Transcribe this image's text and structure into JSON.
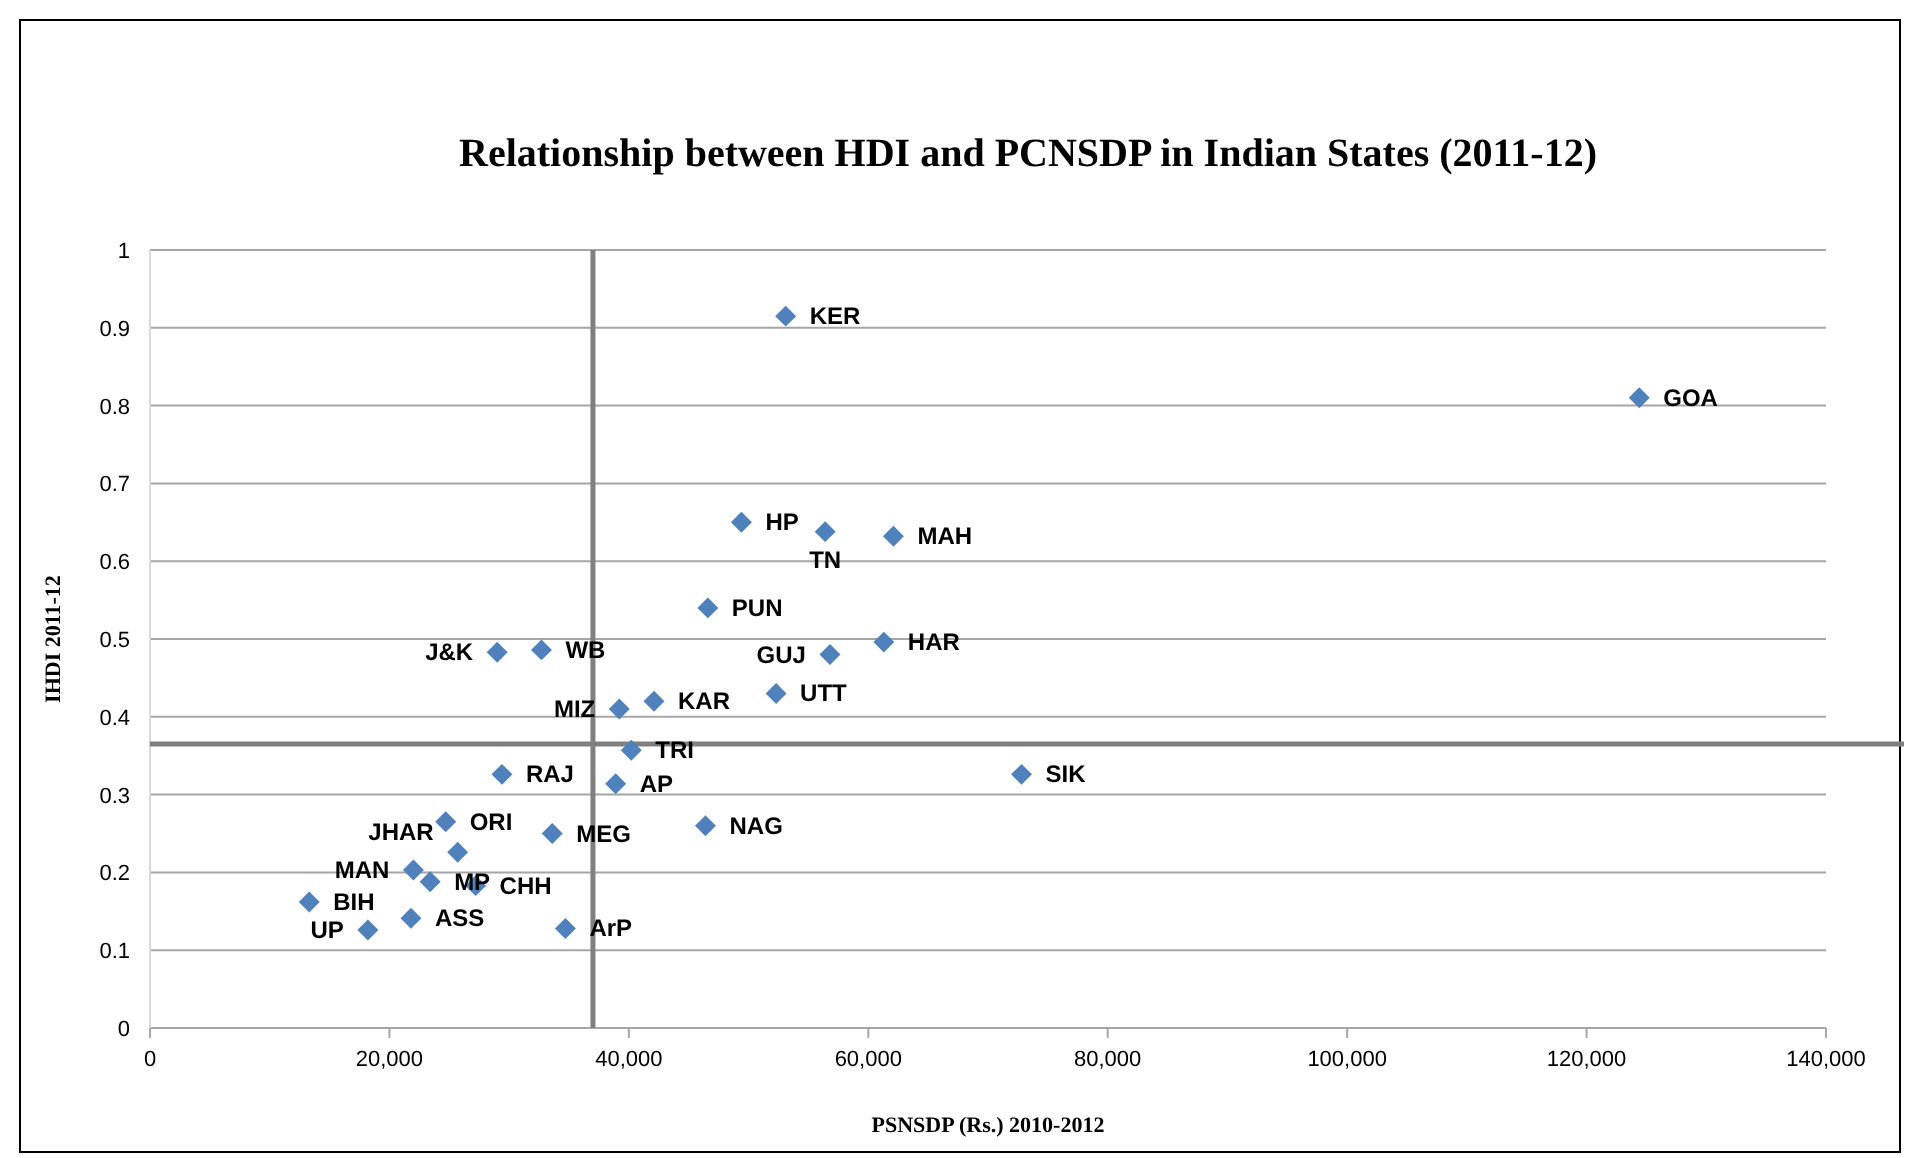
{
  "chart_data": {
    "type": "scatter",
    "title": "Relationship between HDI and PCNSDP in Indian States (2011-12)",
    "xlabel": "PSNSDP (Rs.) 2010-2012",
    "ylabel": "IHDI 2011-12",
    "series": [
      {
        "color": "#4f81bd",
        "x": [
          53100,
          124400,
          49400,
          56400,
          62100,
          46600,
          61300,
          56800,
          52300,
          39200,
          42100,
          32700,
          29000,
          40200,
          38900,
          29400,
          46400,
          72800,
          24700,
          33600,
          25700,
          22000,
          23400,
          27200,
          13300,
          21800,
          18200,
          34700
        ],
        "values": [
          0.915,
          0.81,
          0.65,
          0.638,
          0.632,
          0.54,
          0.496,
          0.48,
          0.43,
          0.41,
          0.42,
          0.486,
          0.483,
          0.357,
          0.314,
          0.326,
          0.26,
          0.326,
          0.265,
          0.25,
          0.226,
          0.203,
          0.188,
          0.183,
          0.162,
          0.141,
          0.126,
          0.128
        ]
      }
    ],
    "annotations": [
      {
        "text": "KER",
        "x": 53100,
        "y": 0.915
      },
      {
        "text": "GOA",
        "x": 124400,
        "y": 0.81
      },
      {
        "text": "HP",
        "x": 49400,
        "y": 0.65
      },
      {
        "text": "TN",
        "x": 56400,
        "y": 0.638
      },
      {
        "text": "MAH",
        "x": 62100,
        "y": 0.632
      },
      {
        "text": "PUN",
        "x": 46600,
        "y": 0.54
      },
      {
        "text": "HAR",
        "x": 61300,
        "y": 0.496
      },
      {
        "text": "GUJ",
        "x": 56800,
        "y": 0.48
      },
      {
        "text": "UTT",
        "x": 52300,
        "y": 0.43
      },
      {
        "text": "MIZ",
        "x": 39200,
        "y": 0.41
      },
      {
        "text": "KAR",
        "x": 42100,
        "y": 0.42
      },
      {
        "text": "WB",
        "x": 32700,
        "y": 0.486
      },
      {
        "text": "J&K",
        "x": 29000,
        "y": 0.483
      },
      {
        "text": "TRI",
        "x": 40200,
        "y": 0.357
      },
      {
        "text": "AP",
        "x": 38900,
        "y": 0.314
      },
      {
        "text": "RAJ",
        "x": 29400,
        "y": 0.326
      },
      {
        "text": "NAG",
        "x": 46400,
        "y": 0.26
      },
      {
        "text": "SIK",
        "x": 72800,
        "y": 0.326
      },
      {
        "text": "ORI",
        "x": 24700,
        "y": 0.265
      },
      {
        "text": "MEG",
        "x": 33600,
        "y": 0.25
      },
      {
        "text": "JHAR",
        "x": 25700,
        "y": 0.226
      },
      {
        "text": "MAN",
        "x": 22000,
        "y": 0.203
      },
      {
        "text": "MP",
        "x": 23400,
        "y": 0.188
      },
      {
        "text": "CHH",
        "x": 27200,
        "y": 0.183
      },
      {
        "text": "BIH",
        "x": 13300,
        "y": 0.162
      },
      {
        "text": "ASS",
        "x": 21800,
        "y": 0.141
      },
      {
        "text": "UP",
        "x": 18200,
        "y": 0.126
      },
      {
        "text": "ArP",
        "x": 34700,
        "y": 0.128
      }
    ],
    "ref_lines": [
      {
        "axis": "x",
        "value": 37000,
        "color": "#808080"
      },
      {
        "axis": "y",
        "value": 0.365,
        "color": "#808080"
      }
    ],
    "xlim": [
      0,
      140000
    ],
    "xticks": [
      0,
      {
        "value": 20000,
        "label": "20,000"
      },
      {
        "value": 40000,
        "label": "40,000"
      },
      {
        "value": 60000,
        "label": "60,000"
      },
      {
        "value": 80000,
        "label": "80,000"
      },
      {
        "value": 100000,
        "label": "100,000"
      },
      {
        "value": 120000,
        "label": "120,000"
      },
      {
        "value": 140000,
        "label": "140,000"
      }
    ],
    "ylim": [
      0,
      1
    ],
    "yticks": [
      0,
      0.1,
      0.2,
      0.3,
      0.4,
      0.5,
      0.6,
      0.7,
      0.8,
      0.9,
      1
    ],
    "grid": "y",
    "marker": "diamond"
  }
}
